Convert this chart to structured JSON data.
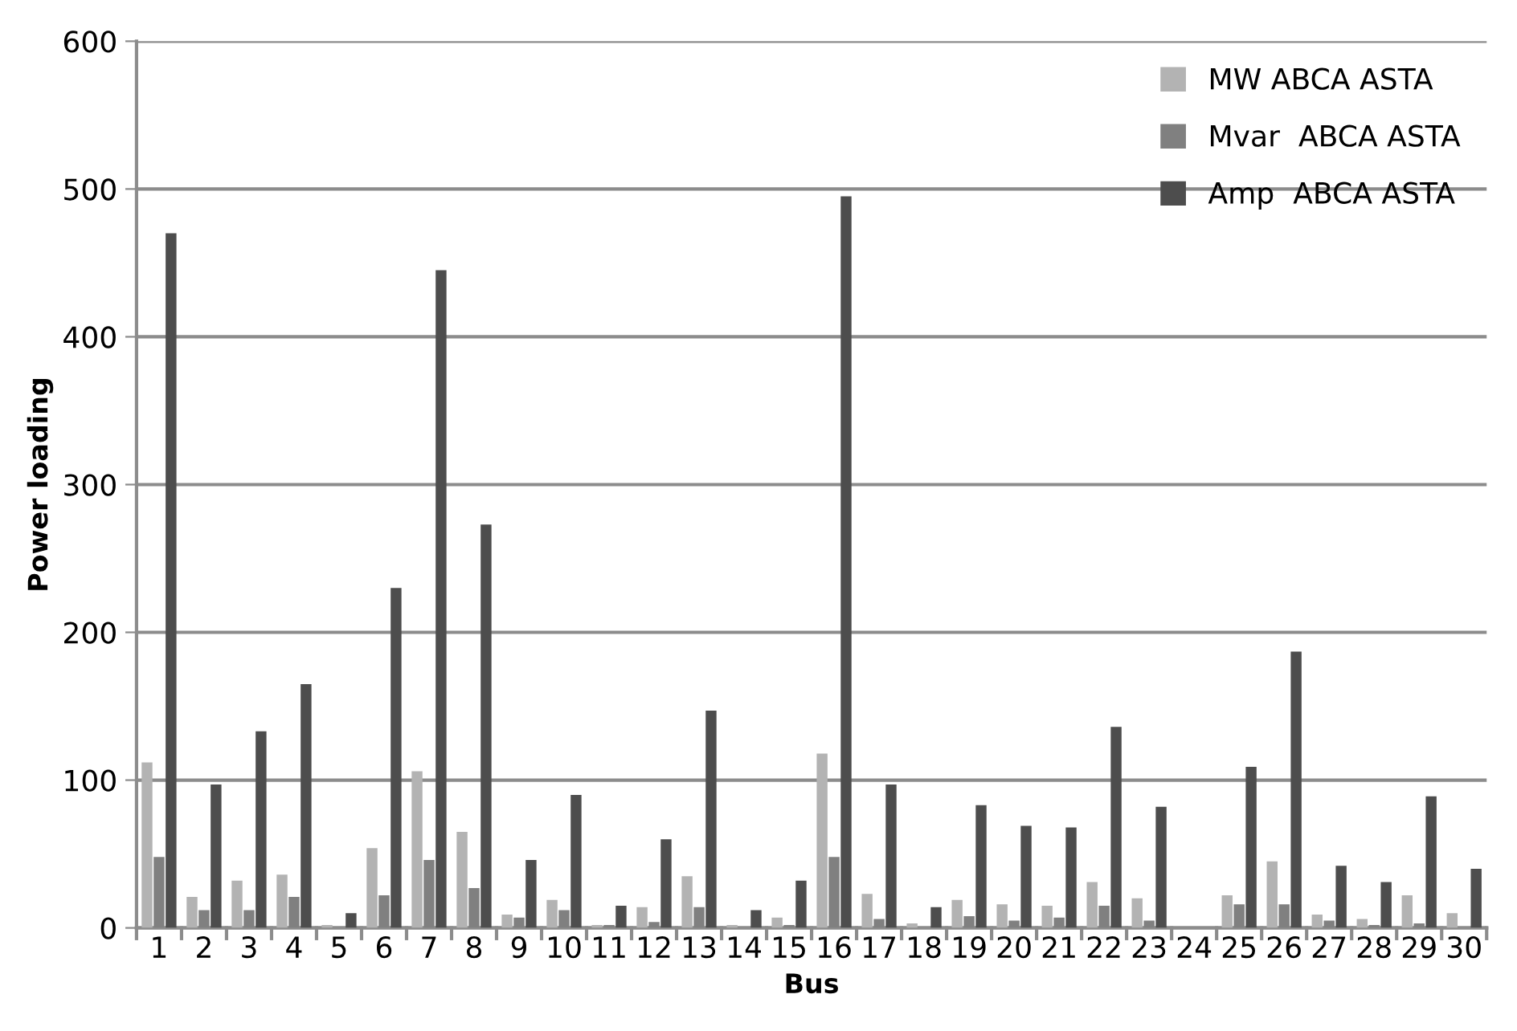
{
  "chart_data": {
    "type": "bar",
    "xlabel": "Bus",
    "ylabel": "Power loading",
    "categories": [
      "1",
      "2",
      "3",
      "4",
      "5",
      "6",
      "7",
      "8",
      "9",
      "10",
      "11",
      "12",
      "13",
      "14",
      "15",
      "16",
      "17",
      "18",
      "19",
      "20",
      "21",
      "22",
      "23",
      "24",
      "25",
      "26",
      "27",
      "28",
      "29",
      "30"
    ],
    "series": [
      {
        "name": "MW ABCA ASTA",
        "color": "#b3b3b3",
        "values": [
          112,
          21,
          32,
          36,
          2,
          54,
          106,
          65,
          9,
          19,
          2,
          14,
          35,
          2,
          7,
          118,
          23,
          3,
          19,
          16,
          15,
          31,
          20,
          0,
          22,
          45,
          9,
          6,
          22,
          10
        ]
      },
      {
        "name": "Mvar  ABCA ASTA",
        "color": "#808080",
        "values": [
          48,
          12,
          12,
          21,
          0,
          22,
          46,
          27,
          7,
          12,
          2,
          4,
          14,
          0,
          2,
          48,
          6,
          0,
          8,
          5,
          7,
          15,
          5,
          0,
          16,
          16,
          5,
          2,
          3,
          null
        ]
      },
      {
        "name": "Amp  ABCA ASTA",
        "color": "#4d4d4d",
        "values": [
          470,
          97,
          133,
          165,
          10,
          230,
          445,
          273,
          46,
          90,
          15,
          60,
          147,
          12,
          32,
          495,
          97,
          14,
          83,
          69,
          68,
          136,
          82,
          0,
          109,
          187,
          42,
          31,
          89,
          40
        ]
      }
    ],
    "ylim": [
      0,
      600
    ],
    "yticks": [
      0,
      100,
      200,
      300,
      400,
      500,
      600
    ],
    "grid": "y",
    "legend": "top right"
  }
}
